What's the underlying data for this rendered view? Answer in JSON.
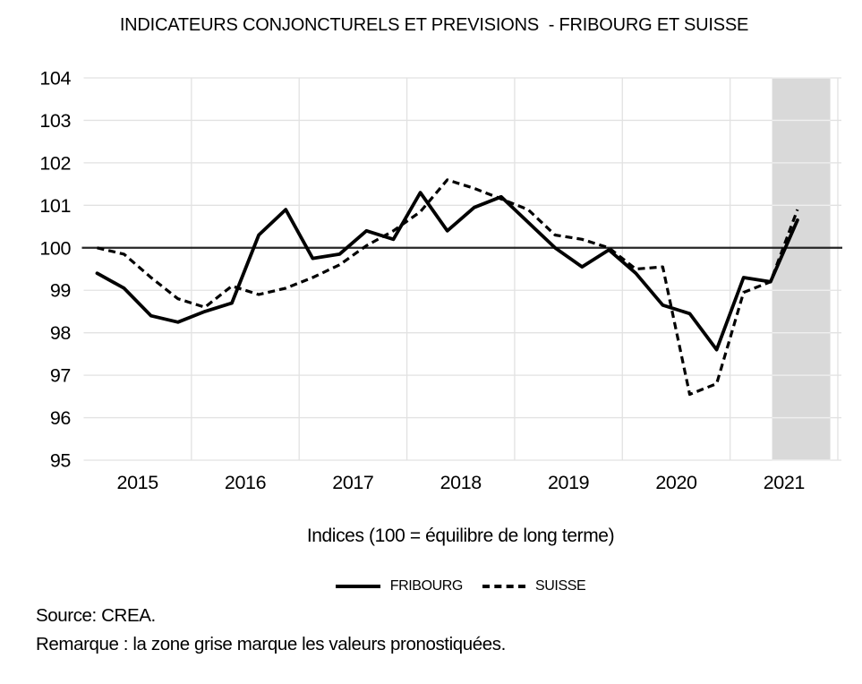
{
  "title": "INDICATEURS CONJONCTURELS ET PREVISIONS  - FRIBOURG ET SUISSE",
  "axis_note": "Indices (100 = équilibre de long terme)",
  "footer": {
    "source": "Source: CREA.",
    "remark": "Remarque : la zone grise marque les valeurs pronostiquées."
  },
  "colors": {
    "line": "#000000",
    "grid": "#e2e2e2",
    "grid_on_zone": "#efefef",
    "forecast_zone": "#d9d9d9",
    "equilibrium_line": "#262626",
    "text": "#000000"
  },
  "chart_data": {
    "type": "line",
    "title": "INDICATEURS CONJONCTURELS ET PREVISIONS  - FRIBOURG ET SUISSE",
    "xlabel": "Indices (100 = équilibre de long terme)",
    "ylabel": "",
    "grid": true,
    "legend_position": "bottom",
    "ylim": [
      95,
      104
    ],
    "y_ticks": [
      104,
      103,
      102,
      101,
      100,
      99,
      98,
      97,
      96,
      95
    ],
    "x_domain_years": [
      2015,
      2022
    ],
    "x_tick_labels": [
      "2015",
      "2016",
      "2017",
      "2018",
      "2019",
      "2020",
      "2021"
    ],
    "equilibrium_value": 100,
    "forecast_zone_years": [
      2021.39,
      2021.93
    ],
    "forecast_zone_note": "zone grise = valeurs pronostiquées",
    "quarters": [
      "2015Q1",
      "2015Q2",
      "2015Q3",
      "2015Q4",
      "2016Q1",
      "2016Q2",
      "2016Q3",
      "2016Q4",
      "2017Q1",
      "2017Q2",
      "2017Q3",
      "2017Q4",
      "2018Q1",
      "2018Q2",
      "2018Q3",
      "2018Q4",
      "2019Q1",
      "2019Q2",
      "2019Q3",
      "2019Q4",
      "2020Q1",
      "2020Q2",
      "2020Q3",
      "2020Q4",
      "2021Q1",
      "2021Q2",
      "2021Q3"
    ],
    "series": [
      {
        "name": "FRIBOURG",
        "line_style": "solid",
        "values": [
          99.4,
          99.05,
          98.4,
          98.25,
          98.5,
          98.7,
          100.3,
          100.9,
          99.75,
          99.85,
          100.4,
          100.2,
          101.3,
          100.4,
          100.95,
          101.2,
          100.6,
          100.0,
          99.55,
          99.95,
          99.4,
          98.65,
          98.45,
          97.6,
          99.3,
          99.2,
          100.65
        ]
      },
      {
        "name": "SUISSE",
        "line_style": "dashed",
        "values": [
          100.0,
          99.85,
          99.3,
          98.8,
          98.6,
          99.1,
          98.9,
          99.05,
          99.3,
          99.6,
          100.05,
          100.4,
          100.85,
          101.6,
          101.4,
          101.15,
          100.9,
          100.3,
          100.2,
          100.0,
          99.5,
          99.55,
          96.55,
          96.8,
          98.95,
          99.2,
          100.9
        ]
      }
    ]
  }
}
